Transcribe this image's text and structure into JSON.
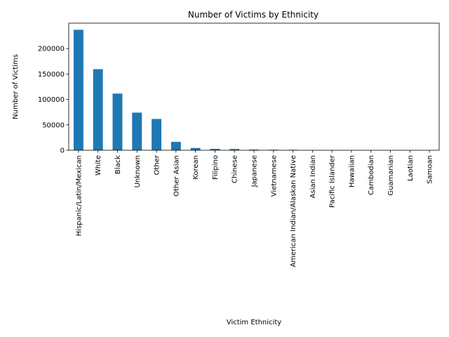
{
  "chart_data": {
    "type": "bar",
    "title": "Number of Victims by Ethnicity",
    "xlabel": "Victim Ethnicity",
    "ylabel": "Number of Victims",
    "categories": [
      "Hispanic/Latin/Mexican",
      "White",
      "Black",
      "Unknown",
      "Other",
      "Other Asian",
      "Korean",
      "Filipino",
      "Chinese",
      "Japanese",
      "Vietnamese",
      "American Indian/Alaskan Native",
      "Asian Indian",
      "Pacific Islander",
      "Hawaiian",
      "Cambodian",
      "Guamanian",
      "Laotian",
      "Samoan"
    ],
    "values": [
      237000,
      159500,
      111500,
      74000,
      61500,
      16500,
      4500,
      2800,
      2500,
      1400,
      1100,
      900,
      300,
      200,
      100,
      60,
      40,
      30,
      20
    ],
    "ylim": [
      0,
      250000
    ],
    "yticks": [
      0,
      50000,
      100000,
      150000,
      200000
    ],
    "ytick_labels": [
      "0",
      "50000",
      "100000",
      "150000",
      "200000"
    ],
    "bar_color": "#1f77b4",
    "grid": false,
    "legend": "none"
  }
}
